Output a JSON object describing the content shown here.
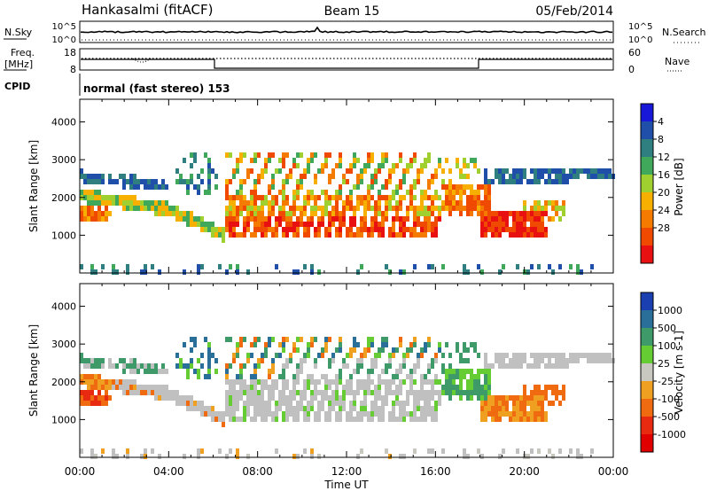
{
  "header": {
    "station": "Hankasalmi (fitACF)",
    "beam": "Beam 15",
    "date": "05/Feb/2014"
  },
  "panels": {
    "nsky": {
      "left_label": "N.Sky",
      "right_label": "N.Search",
      "left_ticks": [
        "10^5",
        "10^0"
      ],
      "right_ticks": [
        "10^5",
        "10^0"
      ]
    },
    "freq": {
      "left_label_top": "Freq.",
      "left_label_bottom": "[MHz]",
      "right_label": "Nave",
      "left_ticks": [
        "18",
        "8"
      ],
      "right_ticks": [
        "60",
        "0"
      ]
    },
    "cpid": {
      "label": "CPID",
      "text": "normal (fast stereo) 153"
    }
  },
  "colors": {
    "frame": "#000000",
    "ground_scatter": "#c0c0c0"
  },
  "chart_data": [
    {
      "type": "heatmap",
      "name": "power",
      "xlabel": "Time UT",
      "ylabel": "Slant Range [km]",
      "xlim": [
        "00:00",
        "24:00"
      ],
      "ylim": [
        0,
        4600
      ],
      "yticks": [
        "1000",
        "2000",
        "3000",
        "4000"
      ],
      "xticks": [
        "00:00",
        "04:00",
        "08:00",
        "12:00",
        "16:00",
        "20:00",
        "00:00"
      ],
      "colorbar": {
        "label": "Power [dB]",
        "ticks": [
          "4",
          "8",
          "12",
          "16",
          "20",
          "24",
          "28"
        ],
        "levels": [
          {
            "color": "#1818d8"
          },
          {
            "color": "#1f4fa8"
          },
          {
            "color": "#2f7f80"
          },
          {
            "color": "#3fa85a"
          },
          {
            "color": "#9fd030"
          },
          {
            "color": "#f7b000"
          },
          {
            "color": "#f57a00"
          },
          {
            "color": "#f04a00"
          },
          {
            "color": "#e81010"
          }
        ]
      }
    },
    {
      "type": "heatmap",
      "name": "velocity",
      "xlabel": "Time UT",
      "ylabel": "Slant Range [km]",
      "xlim": [
        "00:00",
        "24:00"
      ],
      "ylim": [
        0,
        4600
      ],
      "yticks": [
        "1000",
        "2000",
        "3000",
        "4000"
      ],
      "xticks": [
        "00:00",
        "04:00",
        "08:00",
        "12:00",
        "16:00",
        "20:00",
        "00:00"
      ],
      "colorbar": {
        "label": "Velocity [m s-1]",
        "ticks": [
          "1000",
          "500",
          "100",
          "25",
          "-25",
          "-100",
          "-500",
          "-1000"
        ],
        "levels": [
          {
            "color": "#1a3fb0"
          },
          {
            "color": "#2a6f9a"
          },
          {
            "color": "#3f9a6a"
          },
          {
            "color": "#66cc33"
          },
          {
            "color": "#c8c8c0"
          },
          {
            "color": "#f0a020"
          },
          {
            "color": "#f06a10"
          },
          {
            "color": "#e82a10"
          },
          {
            "color": "#e00000"
          }
        ]
      }
    }
  ]
}
